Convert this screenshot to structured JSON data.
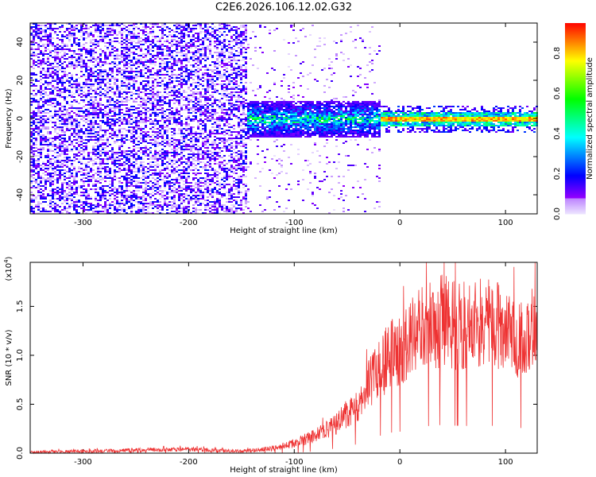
{
  "title": "C2E6.2026.106.12.02.G32",
  "chart_data": [
    {
      "type": "heatmap",
      "title": "C2E6.2026.106.12.02.G32",
      "xlabel": "Height of straight line (km)",
      "ylabel": "Frequency (Hz)",
      "xlim": [
        -350,
        130
      ],
      "ylim": [
        -50,
        50
      ],
      "xticks": [
        -300,
        -200,
        -100,
        0,
        100
      ],
      "yticks": [
        -40,
        -20,
        0,
        20,
        40
      ],
      "colorbar": {
        "label": "Normalized spectral amplitude",
        "range": [
          0.0,
          0.95
        ],
        "ticks": [
          0.0,
          0.2,
          0.4,
          0.6,
          0.8
        ]
      },
      "regions": [
        {
          "x_range": [
            -350,
            -145
          ],
          "freq_spread_hz": 50,
          "amplitude": 0.15,
          "description": "diffuse noise"
        },
        {
          "x_range": [
            -145,
            -20
          ],
          "freq_spread_hz": 10,
          "amplitude": 0.35,
          "description": "band near 0 Hz"
        },
        {
          "x_range": [
            -20,
            130
          ],
          "freq_spread_hz": 3,
          "amplitude": 0.9,
          "description": "narrow line at 0 Hz"
        }
      ]
    },
    {
      "type": "line",
      "xlabel": "Height of straight line (km)",
      "ylabel": "SNR (10 * v/v)",
      "multiplier_base": "x10",
      "multiplier_exp": "4",
      "xlim": [
        -350,
        130
      ],
      "ylim": [
        0,
        1.95
      ],
      "xticks": [
        -300,
        -200,
        -100,
        0,
        100
      ],
      "yticks": [
        0.0,
        0.5,
        1.0,
        1.5
      ],
      "series": [
        {
          "name": "SNR",
          "color": "#ee3333",
          "x": [
            -350,
            -300,
            -250,
            -200,
            -150,
            -120,
            -100,
            -80,
            -60,
            -40,
            -30,
            -20,
            -10,
            0,
            10,
            20,
            30,
            40,
            60,
            80,
            100,
            110,
            130
          ],
          "y": [
            0.01,
            0.02,
            0.03,
            0.04,
            0.02,
            0.05,
            0.1,
            0.18,
            0.3,
            0.5,
            0.7,
            0.85,
            1.0,
            1.05,
            1.15,
            1.3,
            1.3,
            1.35,
            1.3,
            1.35,
            1.25,
            1.2,
            1.25
          ]
        }
      ]
    }
  ],
  "colors": {
    "line": "#ee3333",
    "axes": "#000000"
  }
}
